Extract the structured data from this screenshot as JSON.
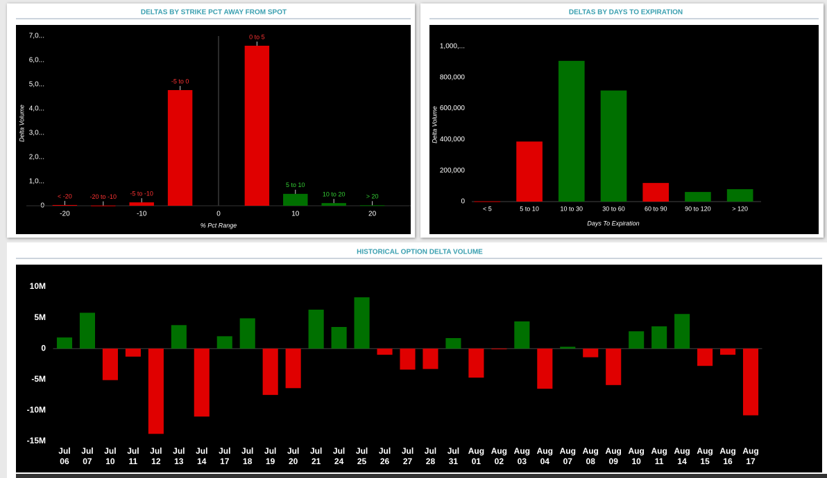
{
  "chart_data": [
    {
      "type": "bar",
      "title": "DELTAS BY STRIKE PCT AWAY FROM SPOT",
      "x": [
        -20,
        -15,
        -10,
        -5,
        5,
        10,
        15,
        20
      ],
      "labels": [
        "< -20",
        "-20 to -10",
        "-5 to -10",
        "-5 to 0",
        "0 to 5",
        "5 to 10",
        "10 to 20",
        "> 20"
      ],
      "values": [
        30,
        10,
        140,
        4770,
        6600,
        490,
        110,
        20
      ],
      "colors": [
        "#e00000",
        "#e00000",
        "#e00000",
        "#e00000",
        "#e00000",
        "#007000",
        "#007000",
        "#007000"
      ],
      "xlim": [
        -25,
        25
      ],
      "xticks": [
        -20,
        -10,
        0,
        10,
        20
      ],
      "ylim": [
        0,
        7000
      ],
      "yticks": [
        0,
        {
          "value": 1000,
          "label": "1,0..."
        },
        {
          "value": 2000,
          "label": "2,0..."
        },
        {
          "value": 3000,
          "label": "3,0..."
        },
        {
          "value": 4000,
          "label": "4,0..."
        },
        {
          "value": 5000,
          "label": "5,0..."
        },
        {
          "value": 6000,
          "label": "6,0..."
        },
        {
          "value": 7000,
          "label": "7,0..."
        }
      ],
      "x_label": "% Pct Range",
      "y_label": "Delta Volume"
    },
    {
      "type": "bar",
      "title": "DELTAS BY DAYS TO EXPIRATION",
      "categories": [
        "< 5",
        "5 to 10",
        "10 to 30",
        "30 to 60",
        "60 to 90",
        "90 to 120",
        "> 120"
      ],
      "values": [
        2000,
        387000,
        907000,
        716000,
        120000,
        62000,
        80000
      ],
      "colors": [
        "#e00000",
        "#e00000",
        "#007000",
        "#007000",
        "#e00000",
        "#007000",
        "#007000"
      ],
      "ylim": [
        0,
        1000000
      ],
      "yticks": [
        0,
        {
          "value": 200000,
          "label": "200,000"
        },
        {
          "value": 400000,
          "label": "400,000"
        },
        {
          "value": 600000,
          "label": "600,000"
        },
        {
          "value": 800000,
          "label": "800,000"
        },
        {
          "value": 1000000,
          "label": "1,000,..."
        }
      ],
      "x_label": "Days To Expiration",
      "y_label": "Delta Volume"
    },
    {
      "type": "bar",
      "title": "HISTORICAL OPTION DELTA VOLUME",
      "categories": [
        "Jul 06",
        "Jul 07",
        "Jul 10",
        "Jul 11",
        "Jul 12",
        "Jul 13",
        "Jul 14",
        "Jul 17",
        "Jul 18",
        "Jul 19",
        "Jul 20",
        "Jul 21",
        "Jul 24",
        "Jul 25",
        "Jul 26",
        "Jul 27",
        "Jul 28",
        "Jul 31",
        "Aug 01",
        "Aug 02",
        "Aug 03",
        "Aug 04",
        "Aug 07",
        "Aug 08",
        "Aug 09",
        "Aug 10",
        "Aug 11",
        "Aug 14",
        "Aug 15",
        "Aug 16",
        "Aug 17"
      ],
      "values": [
        1800000,
        5800000,
        -5100000,
        -1300000,
        -13800000,
        3800000,
        -11000000,
        2000000,
        4900000,
        -7500000,
        -6400000,
        6300000,
        3500000,
        8300000,
        -1000000,
        -3400000,
        -3300000,
        1700000,
        -4700000,
        -100000,
        4400000,
        -6500000,
        300000,
        -1400000,
        -5900000,
        2800000,
        3600000,
        5600000,
        -2800000,
        -1000000,
        -10800000
      ],
      "positive_color": "#007000",
      "negative_color": "#e00000",
      "ylim": [
        -15000000,
        10000000
      ],
      "yticks": [
        {
          "value": -15000000,
          "label": "-15M"
        },
        {
          "value": -10000000,
          "label": "-10M"
        },
        {
          "value": -5000000,
          "label": "-5M"
        },
        0,
        {
          "value": 5000000,
          "label": "5M"
        },
        {
          "value": 10000000,
          "label": "10M"
        }
      ]
    }
  ]
}
